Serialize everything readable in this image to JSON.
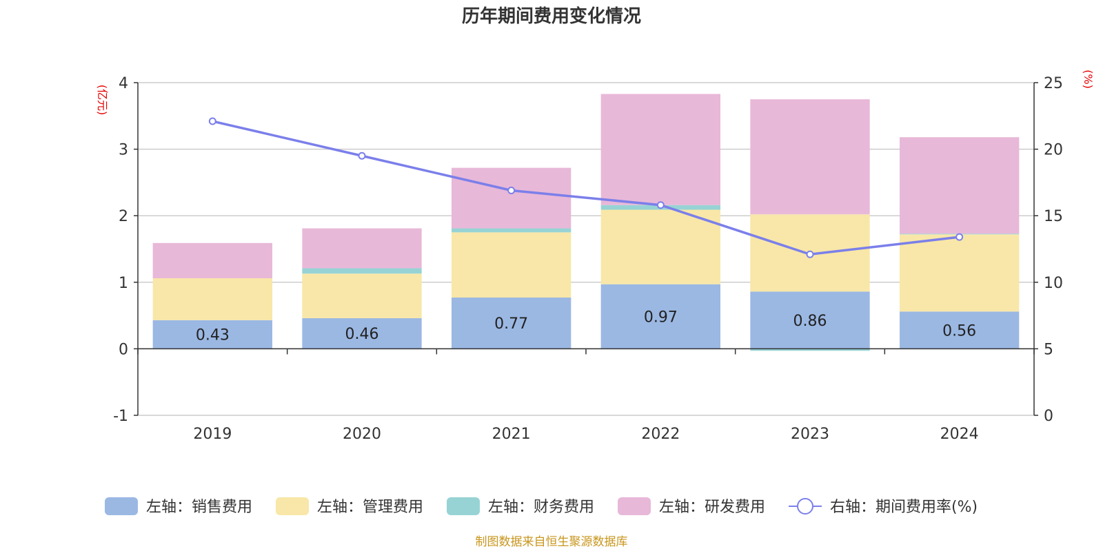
{
  "chart_data": {
    "type": "bar",
    "title": "历年期间费用变化情况",
    "categories": [
      "2019",
      "2020",
      "2021",
      "2022",
      "2023",
      "2024"
    ],
    "left_axis": {
      "unit": "(亿元)",
      "ylim": [
        -1,
        4
      ],
      "ticks": [
        "-1",
        "0",
        "1",
        "2",
        "3",
        "4"
      ]
    },
    "right_axis": {
      "unit": "(%)",
      "ylim": [
        0,
        25
      ],
      "ticks": [
        "0",
        "5",
        "10",
        "15",
        "20",
        "25"
      ]
    },
    "series": [
      {
        "name": "左轴：销售费用",
        "type": "bar",
        "color": "#9bb8e3",
        "values": [
          0.43,
          0.46,
          0.77,
          0.97,
          0.86,
          0.56
        ],
        "labels": [
          "0.43",
          "0.46",
          "0.77",
          "0.97",
          "0.86",
          "0.56"
        ]
      },
      {
        "name": "左轴：管理费用",
        "type": "bar",
        "color": "#f8e7a8",
        "values": [
          0.63,
          0.67,
          0.98,
          1.12,
          1.16,
          1.16
        ]
      },
      {
        "name": "左轴：财务费用",
        "type": "bar",
        "color": "#97d3d5",
        "values": [
          0.0,
          0.08,
          0.06,
          0.07,
          -0.03,
          0.01
        ]
      },
      {
        "name": "左轴：研发费用",
        "type": "bar",
        "color": "#e8b8d8",
        "values": [
          0.53,
          0.6,
          0.91,
          1.67,
          1.73,
          1.45
        ]
      },
      {
        "name": "右轴：期间费用率(%)",
        "type": "line",
        "color": "#7b7fea",
        "values": [
          22.1,
          19.5,
          16.9,
          15.8,
          12.1,
          13.4
        ]
      }
    ],
    "grid": true,
    "legend": "bottom"
  },
  "source_note": "制图数据来自恒生聚源数据库"
}
